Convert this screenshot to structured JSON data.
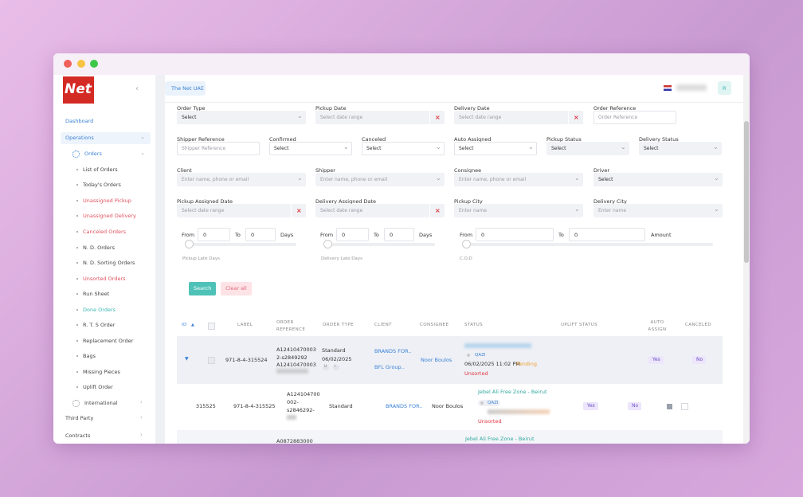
{
  "sidebar": {
    "logo": "Net",
    "items": [
      {
        "label": "Dashboard",
        "color": "#3b82d6"
      },
      {
        "label": "Operations",
        "color": "#3b82d6"
      },
      {
        "label": "Orders",
        "color": "#3b82d6"
      },
      {
        "label": "List of Orders"
      },
      {
        "label": "Today's Orders"
      },
      {
        "label": "Unassigned Pickup",
        "color": "#e0525e"
      },
      {
        "label": "Unassigned Delivery",
        "color": "#e0525e"
      },
      {
        "label": "Canceled Orders",
        "color": "#e0525e"
      },
      {
        "label": "N. D. Orders"
      },
      {
        "label": "N. D. Sorting Orders"
      },
      {
        "label": "Unsorted Orders",
        "color": "#e0525e"
      },
      {
        "label": "Run Sheet"
      },
      {
        "label": "Done Orders",
        "color": "#3bb5b0"
      },
      {
        "label": "R. T. S Order"
      },
      {
        "label": "Replacement Order"
      },
      {
        "label": "Bags"
      },
      {
        "label": "Missing Pieces"
      },
      {
        "label": "Uplift Order"
      },
      {
        "label": "International"
      },
      {
        "label": "Third Party"
      },
      {
        "label": "Contracts"
      }
    ]
  },
  "header": {
    "tab": "The Net UAE",
    "user_initial": "R"
  },
  "filters": [
    {
      "label": "Order Type",
      "placeholder": "Select"
    },
    {
      "label": "Pickup Date",
      "placeholder": "Select date range"
    },
    {
      "label": "Delivery Date",
      "placeholder": "Select date range"
    },
    {
      "label": "Order Reference",
      "placeholder": "Order Reference"
    },
    {
      "label": "Shipper Reference",
      "placeholder": "Shipper Reference"
    },
    {
      "label": "Confirmed",
      "placeholder": "Select"
    },
    {
      "label": "Canceled",
      "placeholder": "Select"
    },
    {
      "label": "Auto Assigned",
      "placeholder": "Select"
    },
    {
      "label": "Pickup Status",
      "placeholder": "Select"
    },
    {
      "label": "Delivery Status",
      "placeholder": "Select"
    },
    {
      "label": "Client",
      "placeholder": "Enter name, phone or email"
    },
    {
      "label": "Shipper",
      "placeholder": "Enter name, phone or email"
    },
    {
      "label": "Consignee",
      "placeholder": "Enter name, phone or email"
    },
    {
      "label": "Driver",
      "placeholder": "Select"
    },
    {
      "label": "Pickup Assigned Date",
      "placeholder": "Select date range"
    },
    {
      "label": "Delivery Assigned Date",
      "placeholder": "Select date range"
    },
    {
      "label": "Pickup City",
      "placeholder": "Enter name"
    },
    {
      "label": "Delivery City",
      "placeholder": "Enter name"
    }
  ],
  "ranges": [
    {
      "from": "From",
      "from_value": "0",
      "to": "To",
      "to_value": "0",
      "unit": "Days",
      "caption": "Pickup Late Days"
    },
    {
      "from": "From",
      "from_value": "0",
      "to": "To",
      "to_value": "0",
      "unit": "Days",
      "caption": "Delivery Late Days"
    },
    {
      "from": "From",
      "from_value": "0",
      "to": "To",
      "to_value": "0",
      "unit": "Amount",
      "caption": "C.O.D"
    }
  ],
  "buttons": {
    "search": "Search",
    "clear": "Clear all"
  },
  "table": {
    "headers": [
      "ID",
      "LABEL",
      "ORDER REFERENCE",
      "ORDER TYPE",
      "CLIENT",
      "CONSIGNEE",
      "STATUS",
      "UPLIFT STATUS",
      "AUTO ASSIGN",
      "CANCELED"
    ],
    "rows": [
      {
        "label": "971-8-4-315524",
        "reference": [
          "A12410470003",
          "2-s2849292",
          "A12410470003"
        ],
        "order_type": "Standard",
        "date": "06/02/2025",
        "badges": [
          "U",
          "I"
        ],
        "client": [
          "BRANDS FOR..",
          "BFL Group.."
        ],
        "consignee": "Noor Boulos",
        "status": {
          "driver": "QAZI",
          "time": "06/02/2025 11:02 PM",
          "state": "Pending",
          "sorting": "Unsorted"
        },
        "auto_assign": "Yes",
        "canceled": "No"
      },
      {
        "id": "315525",
        "label": "971-8-4-315525",
        "reference": [
          "A124104700",
          "002-",
          "s2846292-"
        ],
        "order_type": "Standard",
        "client": [
          "BRANDS FOR.."
        ],
        "consignee": "Noor Boulos",
        "status": {
          "route": "Jebel Ali Free Zone - Beirut",
          "driver": "QAZI",
          "sorting": "Unsorted"
        },
        "uplift_status": "Yes",
        "auto_assign": "No"
      },
      {
        "reference": [
          "A0872883000"
        ],
        "status": {
          "route": "Jebel Ali Free Zone - Beirut"
        }
      }
    ]
  }
}
